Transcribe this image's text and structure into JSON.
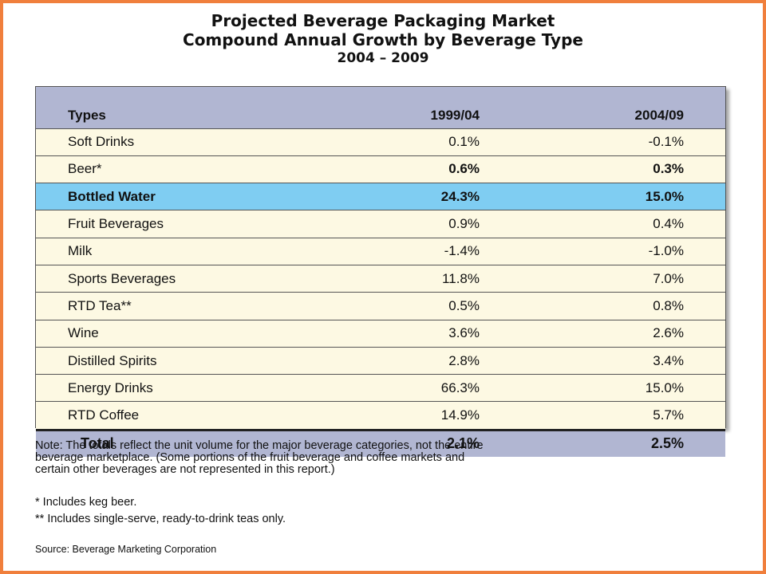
{
  "title": {
    "line1": "Projected Beverage Packaging Market",
    "line2": "Compound Annual Growth by Beverage Type",
    "line3": "2004 – 2009"
  },
  "chart_data": {
    "type": "table",
    "columns": [
      "Types",
      "1999/04",
      "2004/09"
    ],
    "rows": [
      {
        "type": "Soft Drinks",
        "v1": "0.1%",
        "v2": "-0.1%"
      },
      {
        "type": "Beer*",
        "v1": "0.6%",
        "v2": "0.3%"
      },
      {
        "type": "Bottled Water",
        "v1": "24.3%",
        "v2": "15.0%"
      },
      {
        "type": "Fruit Beverages",
        "v1": "0.9%",
        "v2": "0.4%"
      },
      {
        "type": "Milk",
        "v1": "-1.4%",
        "v2": "-1.0%"
      },
      {
        "type": "Sports Beverages",
        "v1": "11.8%",
        "v2": "7.0%"
      },
      {
        "type": "RTD Tea**",
        "v1": "0.5%",
        "v2": "0.8%"
      },
      {
        "type": "Wine",
        "v1": "3.6%",
        "v2": "2.6%"
      },
      {
        "type": "Distilled Spirits",
        "v1": "2.8%",
        "v2": "3.4%"
      },
      {
        "type": "Energy Drinks",
        "v1": "66.3%",
        "v2": "15.0%"
      },
      {
        "type": "RTD Coffee",
        "v1": "14.9%",
        "v2": "5.7%"
      }
    ],
    "total": {
      "type": "Total",
      "v1": "2.1%",
      "v2": "2.5%"
    },
    "highlight_row": "Bottled Water",
    "colors": {
      "header": "#b1b6d2",
      "row": "#fdf9e3",
      "highlight": "#7fcdf2",
      "frame": "#f07f3c"
    }
  },
  "note": "Note: The totals reflect the unit volume for the major beverage categories, not the entire\nbeverage marketplace.  (Some portions of the fruit beverage and coffee markets and\ncertain other beverages are not represented in this report.)",
  "footnote1": "* Includes keg beer.",
  "footnote2": "** Includes single-serve, ready-to-drink teas only.",
  "source": "Source: Beverage Marketing Corporation"
}
